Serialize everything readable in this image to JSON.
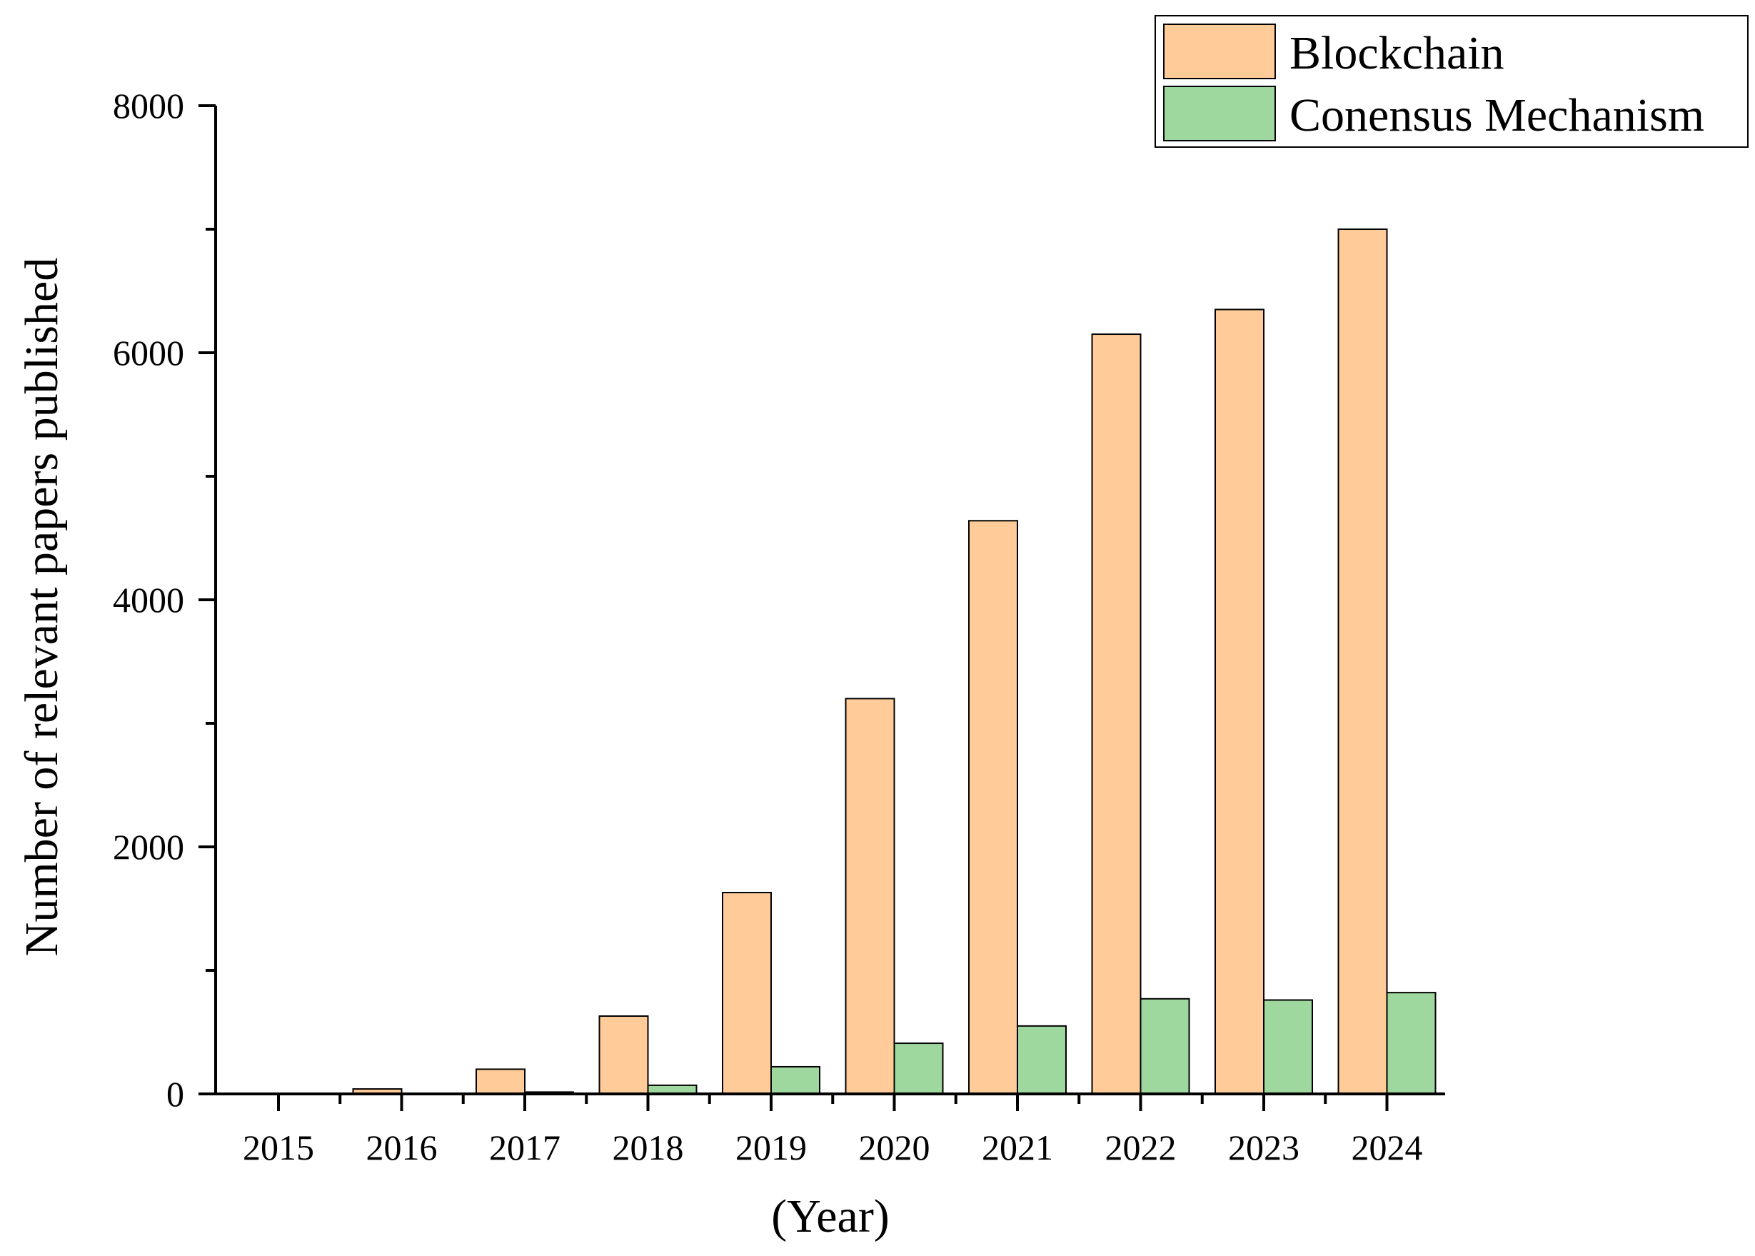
{
  "chart_data": {
    "type": "bar",
    "title": "",
    "xlabel": "(Year)",
    "ylabel": "Number of relevant papers published",
    "categories": [
      "2015",
      "2016",
      "2017",
      "2018",
      "2019",
      "2020",
      "2021",
      "2022",
      "2023",
      "2024"
    ],
    "series": [
      {
        "name": "Blockchain",
        "color": "#FFCC99",
        "values": [
          5,
          40,
          200,
          630,
          1630,
          3200,
          4640,
          6150,
          6350,
          7000
        ]
      },
      {
        "name": "Conensus Mechanism",
        "color": "#9FD89F",
        "values": [
          0,
          3,
          15,
          70,
          220,
          410,
          550,
          770,
          760,
          820
        ]
      }
    ],
    "ylim": [
      0,
      8000
    ],
    "yticks": [
      "0",
      "2000",
      "4000",
      "6000",
      "8000"
    ],
    "grid": false,
    "legend_position": "top-right"
  }
}
